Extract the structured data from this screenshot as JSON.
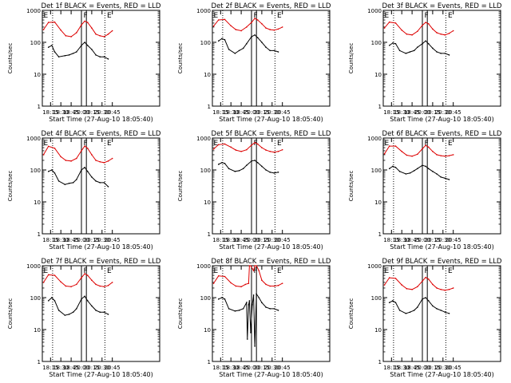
{
  "colors": {
    "events": "#000000",
    "lld": "#dd0000",
    "axes": "#000000",
    "background": "#ffffff"
  },
  "chart_data": {
    "type": "line",
    "yscale": "log",
    "ylim": [
      1,
      1000
    ],
    "yticks": [
      1,
      10,
      100,
      1000
    ],
    "ytick_labels": [
      "1",
      "10",
      "100",
      "1000"
    ],
    "ylabel": "Counts/sec",
    "xlabel": "Start Time (27-Aug-10 18:05:40)",
    "xlim": [
      18.05,
      20.9
    ],
    "xticks": [
      18.25,
      18.5,
      18.75,
      19.0,
      19.25,
      19.5,
      19.75
    ],
    "xtick_labels": [
      "18:15",
      "18:30",
      "18:45",
      "20:00",
      "20:15",
      "20:30",
      "20:45"
    ],
    "dotted_lines_x": [
      18.3,
      19.57
    ],
    "solid_lines_x": [
      19.0,
      19.12
    ],
    "markers": [
      {
        "label": "E",
        "x": 18.06
      },
      {
        "label": "F",
        "x": 19.03
      },
      {
        "label": "E",
        "x": 19.6
      }
    ],
    "panels": [
      {
        "title": "Det 1f BLACK = Events, RED = LLD",
        "series": [
          {
            "name": "RED = LLD",
            "x": [
              18.08,
              18.2,
              18.35,
              18.5,
              18.62,
              18.75,
              18.88,
              19.0,
              19.08,
              19.15,
              19.25,
              19.35,
              19.45,
              19.55,
              19.65,
              19.75
            ],
            "values": [
              250,
              420,
              430,
              240,
              160,
              150,
              200,
              350,
              460,
              420,
              280,
              180,
              160,
              150,
              180,
              230
            ]
          },
          {
            "name": "BLACK = Events",
            "x": [
              18.2,
              18.28,
              18.35,
              18.45,
              18.6,
              18.7,
              18.8,
              18.88,
              19.0,
              19.08,
              19.15,
              19.25,
              19.35,
              19.45,
              19.55,
              19.65
            ],
            "values": [
              70,
              80,
              50,
              35,
              38,
              40,
              45,
              50,
              80,
              100,
              80,
              60,
              40,
              35,
              35,
              30
            ]
          }
        ]
      },
      {
        "title": "Det 2f BLACK = Events, RED = LLD",
        "series": [
          {
            "name": "RED = LLD",
            "x": [
              18.08,
              18.2,
              18.35,
              18.5,
              18.62,
              18.75,
              18.88,
              19.0,
              19.08,
              19.15,
              19.25,
              19.35,
              19.45,
              19.55,
              19.65,
              19.75
            ],
            "values": [
              320,
              500,
              520,
              330,
              250,
              230,
              300,
              420,
              560,
              500,
              380,
              280,
              250,
              240,
              260,
              300
            ]
          },
          {
            "name": "BLACK = Events",
            "x": [
              18.2,
              18.28,
              18.35,
              18.45,
              18.6,
              18.7,
              18.8,
              18.88,
              19.0,
              19.08,
              19.15,
              19.25,
              19.35,
              19.45,
              19.55,
              19.65
            ],
            "values": [
              110,
              130,
              120,
              60,
              45,
              55,
              65,
              90,
              150,
              170,
              140,
              100,
              70,
              55,
              55,
              50
            ]
          }
        ]
      },
      {
        "title": "Det 3f BLACK = Events, RED = LLD",
        "series": [
          {
            "name": "RED = LLD",
            "x": [
              18.08,
              18.2,
              18.35,
              18.5,
              18.62,
              18.75,
              18.88,
              19.0,
              19.08,
              19.15,
              19.25,
              19.35,
              19.45,
              19.55,
              19.65,
              19.75
            ],
            "values": [
              280,
              430,
              400,
              240,
              180,
              170,
              220,
              340,
              420,
              380,
              260,
              200,
              180,
              170,
              190,
              230
            ]
          },
          {
            "name": "BLACK = Events",
            "x": [
              18.2,
              18.28,
              18.35,
              18.45,
              18.6,
              18.7,
              18.8,
              18.88,
              19.0,
              19.08,
              19.15,
              19.25,
              19.35,
              19.45,
              19.55,
              19.65
            ],
            "values": [
              80,
              95,
              90,
              55,
              45,
              50,
              55,
              70,
              90,
              110,
              90,
              65,
              50,
              45,
              45,
              40
            ]
          }
        ]
      },
      {
        "title": "Det 4f BLACK = Events, RED = LLD",
        "series": [
          {
            "name": "RED = LLD",
            "x": [
              18.08,
              18.2,
              18.35,
              18.5,
              18.62,
              18.75,
              18.88,
              19.0,
              19.08,
              19.15,
              19.25,
              19.35,
              19.45,
              19.55,
              19.65,
              19.75
            ],
            "values": [
              300,
              550,
              480,
              260,
              200,
              190,
              230,
              400,
              560,
              480,
              300,
              200,
              180,
              170,
              190,
              230
            ]
          },
          {
            "name": "BLACK = Events",
            "x": [
              18.2,
              18.28,
              18.35,
              18.45,
              18.6,
              18.7,
              18.8,
              18.88,
              19.0,
              19.08,
              19.15,
              19.25,
              19.35,
              19.45,
              19.55,
              19.65
            ],
            "values": [
              90,
              100,
              80,
              45,
              35,
              38,
              40,
              50,
              100,
              120,
              90,
              60,
              45,
              40,
              40,
              30
            ]
          }
        ]
      },
      {
        "title": "Det 5f BLACK = Events, RED = LLD",
        "series": [
          {
            "name": "RED = LLD",
            "x": [
              18.08,
              18.2,
              18.35,
              18.5,
              18.62,
              18.75,
              18.88,
              19.0,
              19.08,
              19.15,
              19.25,
              19.35,
              19.45,
              19.55,
              19.65,
              19.75
            ],
            "values": [
              450,
              620,
              650,
              520,
              420,
              380,
              430,
              600,
              720,
              650,
              500,
              420,
              380,
              360,
              380,
              430
            ]
          },
          {
            "name": "BLACK = Events",
            "x": [
              18.2,
              18.28,
              18.35,
              18.45,
              18.6,
              18.7,
              18.8,
              18.88,
              19.0,
              19.08,
              19.15,
              19.25,
              19.35,
              19.45,
              19.55,
              19.65
            ],
            "values": [
              150,
              170,
              160,
              110,
              90,
              95,
              110,
              140,
              190,
              200,
              170,
              130,
              100,
              85,
              80,
              85
            ]
          }
        ]
      },
      {
        "title": "Det 6f BLACK = Events, RED = LLD",
        "series": [
          {
            "name": "RED = LLD",
            "x": [
              18.08,
              18.2,
              18.35,
              18.5,
              18.62,
              18.75,
              18.88,
              19.0,
              19.08,
              19.15,
              19.25,
              19.35,
              19.45,
              19.55,
              19.65,
              19.75
            ],
            "values": [
              320,
              560,
              560,
              380,
              290,
              270,
              310,
              460,
              590,
              520,
              380,
              300,
              280,
              270,
              280,
              300
            ]
          },
          {
            "name": "BLACK = Events",
            "x": [
              18.2,
              18.28,
              18.35,
              18.45,
              18.6,
              18.7,
              18.8,
              18.88,
              19.0,
              19.08,
              19.15,
              19.25,
              19.35,
              19.45,
              19.55,
              19.65
            ],
            "values": [
              110,
              130,
              120,
              90,
              75,
              80,
              95,
              110,
              140,
              130,
              110,
              90,
              75,
              60,
              55,
              50
            ]
          }
        ]
      },
      {
        "title": "Det 7f BLACK = Events, RED = LLD",
        "series": [
          {
            "name": "RED = LLD",
            "x": [
              18.08,
              18.2,
              18.35,
              18.5,
              18.62,
              18.75,
              18.88,
              19.0,
              19.08,
              19.15,
              19.25,
              19.35,
              19.45,
              19.55,
              19.65,
              19.75
            ],
            "values": [
              300,
              520,
              500,
              310,
              230,
              220,
              260,
              420,
              560,
              500,
              350,
              260,
              230,
              220,
              240,
              300
            ]
          },
          {
            "name": "BLACK = Events",
            "x": [
              18.2,
              18.28,
              18.35,
              18.45,
              18.6,
              18.7,
              18.8,
              18.88,
              19.0,
              19.08,
              19.15,
              19.25,
              19.35,
              19.45,
              19.55,
              19.65
            ],
            "values": [
              80,
              100,
              80,
              40,
              28,
              30,
              35,
              45,
              90,
              110,
              80,
              55,
              40,
              35,
              35,
              30
            ]
          }
        ]
      },
      {
        "title": "Det 8f BLACK = Events, RED = LLD",
        "series": [
          {
            "name": "RED = LLD",
            "x": [
              18.08,
              18.2,
              18.35,
              18.5,
              18.62,
              18.75,
              18.85,
              18.93,
              18.95,
              18.98,
              19.05,
              19.08,
              19.12,
              19.18,
              19.25,
              19.35,
              19.45,
              19.55,
              19.65,
              19.75
            ],
            "values": [
              280,
              480,
              460,
              290,
              230,
              220,
              260,
              280,
              1000,
              1000,
              700,
              1000,
              1000,
              700,
              350,
              260,
              230,
              230,
              240,
              280
            ]
          },
          {
            "name": "BLACK = Events",
            "x": [
              18.2,
              18.28,
              18.35,
              18.45,
              18.6,
              18.7,
              18.8,
              18.88,
              18.9,
              18.93,
              18.95,
              18.98,
              19.02,
              19.05,
              19.08,
              19.12,
              19.18,
              19.25,
              19.35,
              19.45,
              19.55,
              19.65
            ],
            "values": [
              90,
              100,
              90,
              45,
              38,
              40,
              45,
              70,
              5,
              60,
              80,
              8,
              60,
              120,
              3,
              130,
              100,
              70,
              50,
              45,
              45,
              40
            ]
          }
        ]
      },
      {
        "title": "Det 9f BLACK = Events, RED = LLD",
        "series": [
          {
            "name": "RED = LLD",
            "x": [
              18.08,
              18.2,
              18.35,
              18.5,
              18.62,
              18.75,
              18.88,
              19.0,
              19.08,
              19.15,
              19.25,
              19.35,
              19.45,
              19.55,
              19.65,
              19.75
            ],
            "values": [
              250,
              420,
              400,
              250,
              190,
              180,
              220,
              330,
              430,
              380,
              260,
              200,
              180,
              170,
              180,
              200
            ]
          },
          {
            "name": "BLACK = Events",
            "x": [
              18.2,
              18.28,
              18.35,
              18.45,
              18.6,
              18.7,
              18.8,
              18.88,
              19.0,
              19.08,
              19.15,
              19.25,
              19.35,
              19.45,
              19.55,
              19.65
            ],
            "values": [
              70,
              80,
              70,
              40,
              32,
              35,
              40,
              50,
              90,
              100,
              80,
              55,
              45,
              40,
              35,
              32
            ]
          }
        ]
      }
    ]
  }
}
